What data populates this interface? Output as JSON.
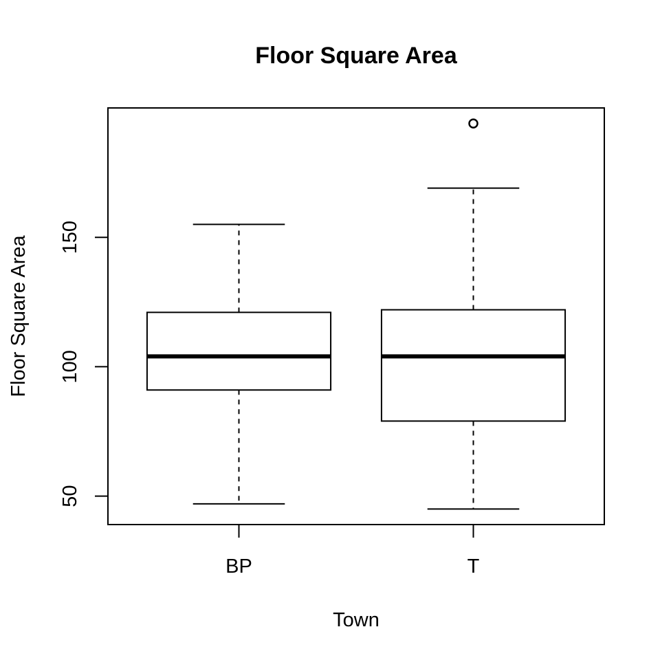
{
  "chart_data": {
    "type": "boxplot",
    "title": "Floor Square Area",
    "xlabel": "Town",
    "ylabel": "Floor Square Area",
    "ylim": [
      39,
      200
    ],
    "yticks": [
      50,
      100,
      150
    ],
    "grid": false,
    "categories": [
      "BP",
      "T"
    ],
    "boxes": [
      {
        "category": "BP",
        "whisker_low": 47,
        "q1": 91,
        "median": 104,
        "q3": 121,
        "whisker_high": 155,
        "outliers": []
      },
      {
        "category": "T",
        "whisker_low": 45,
        "q1": 79,
        "median": 104,
        "q3": 122,
        "whisker_high": 169,
        "outliers": [
          194
        ]
      }
    ]
  }
}
